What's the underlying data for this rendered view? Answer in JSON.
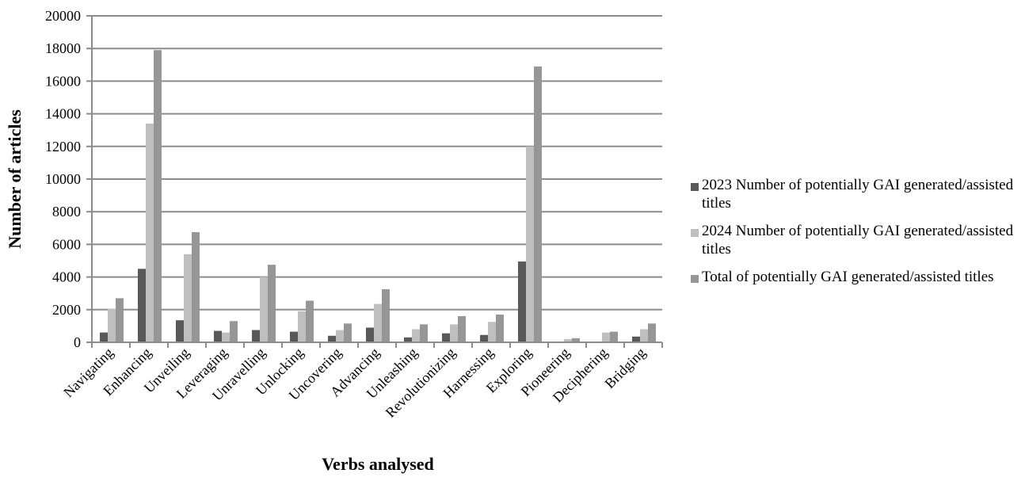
{
  "chart_data": {
    "type": "bar",
    "title": "",
    "xlabel": "Verbs analysed",
    "ylabel": "Number of articles",
    "ylim": [
      0,
      20000
    ],
    "yticks": [
      0,
      2000,
      4000,
      6000,
      8000,
      10000,
      12000,
      14000,
      16000,
      18000,
      20000
    ],
    "grid": true,
    "legend_position": "right",
    "categories": [
      "Navigating",
      "Enhancing",
      "Unveiling",
      "Leveraging",
      "Unravelling",
      "Unlocking",
      "Uncovering",
      "Advancing",
      "Unleashing",
      "Revolutionizing",
      "Harnessing",
      "Exploring",
      "Pioneering",
      "Deciphering",
      "Bridging"
    ],
    "series": [
      {
        "name": "2023 Number of potentially GAI generated/assisted titles",
        "color": "#595959",
        "values": [
          600,
          4500,
          1350,
          700,
          750,
          650,
          400,
          900,
          300,
          550,
          450,
          4950,
          50,
          50,
          350
        ]
      },
      {
        "name": "2024 Number of potentially GAI generated/assisted titles",
        "color": "#bfbfbf",
        "values": [
          2050,
          13400,
          5400,
          600,
          4000,
          1900,
          750,
          2350,
          800,
          1100,
          1250,
          12000,
          200,
          600,
          800
        ]
      },
      {
        "name": "Total of potentially GAI generated/assisted titles",
        "color": "#969696",
        "values": [
          2700,
          17900,
          6750,
          1300,
          4750,
          2550,
          1150,
          3250,
          1100,
          1600,
          1700,
          16900,
          250,
          650,
          1150
        ]
      }
    ]
  },
  "legend": {
    "items": [
      {
        "label": "2023 Number of potentially GAI generated/assisted titles",
        "color": "#595959"
      },
      {
        "label": "2024 Number of potentially GAI generated/assisted titles",
        "color": "#bfbfbf"
      },
      {
        "label": "Total of potentially GAI generated/assisted titles",
        "color": "#969696"
      }
    ]
  }
}
